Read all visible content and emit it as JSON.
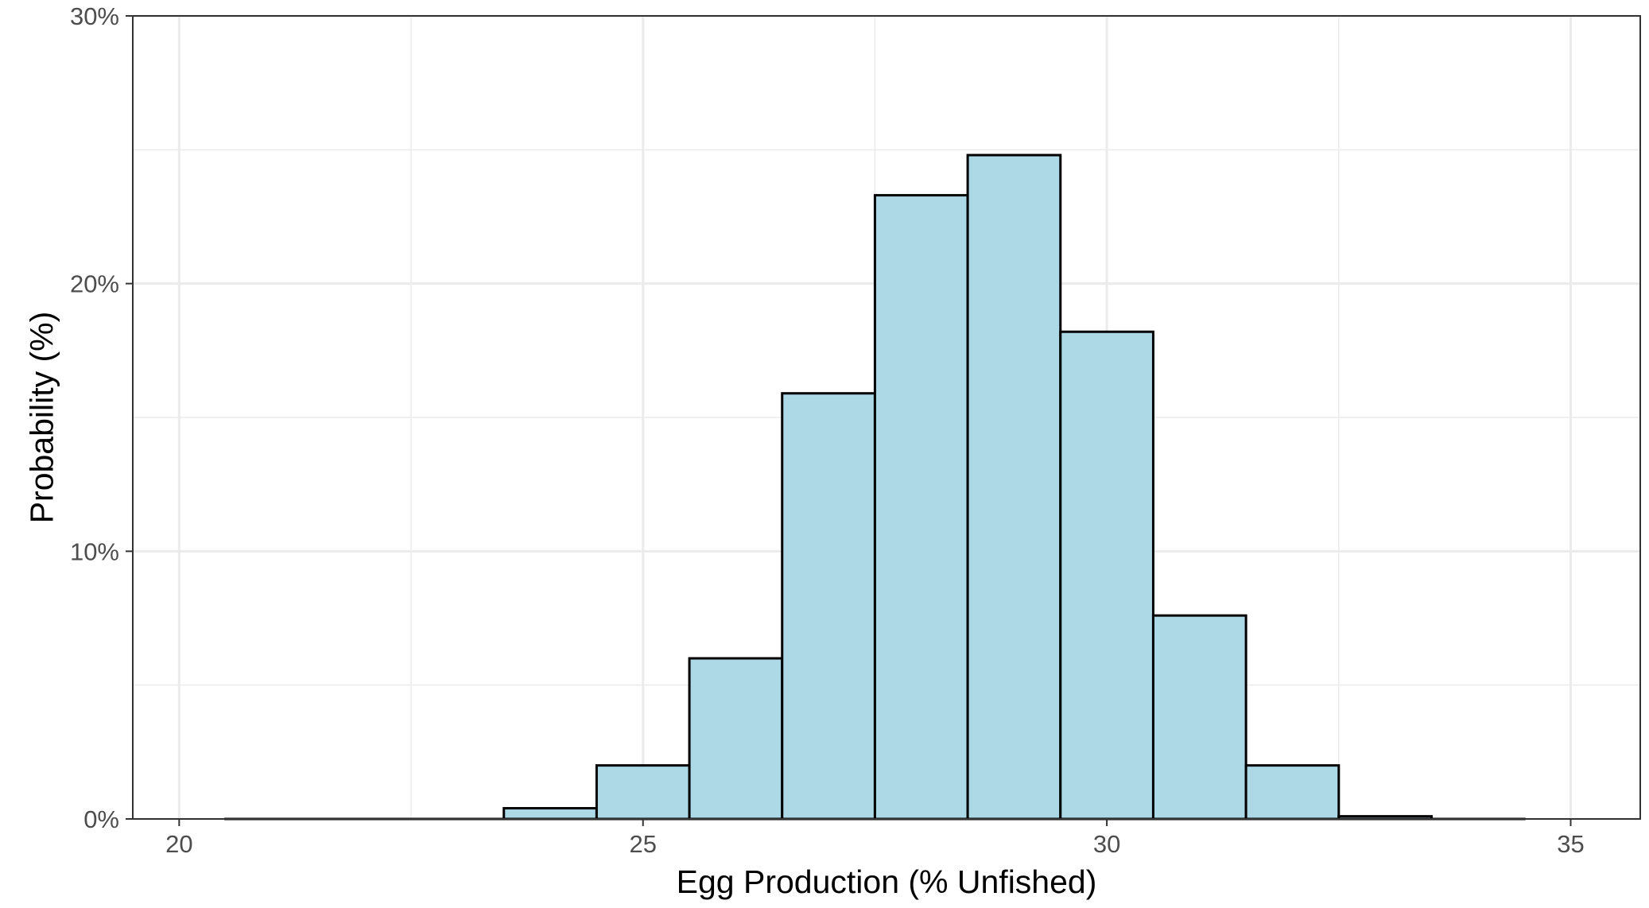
{
  "chart_data": {
    "type": "bar",
    "subtype": "histogram",
    "title": "",
    "xlabel": "Egg Production (% Unfished)",
    "ylabel": "Probability (%)",
    "xlim": [
      19.5,
      35.75
    ],
    "ylim": [
      0,
      30
    ],
    "x_ticks": [
      20,
      25,
      30,
      35
    ],
    "x_tick_labels": [
      "20",
      "25",
      "30",
      "35"
    ],
    "y_ticks": [
      0,
      10,
      20,
      30
    ],
    "y_tick_labels": [
      "0%",
      "10%",
      "20%",
      "30%"
    ],
    "grid": true,
    "bin_width": 1,
    "bins": [
      {
        "x0": 20.5,
        "x1": 21.5,
        "value": 0
      },
      {
        "x0": 21.5,
        "x1": 22.5,
        "value": 0
      },
      {
        "x0": 22.5,
        "x1": 23.5,
        "value": 0
      },
      {
        "x0": 23.5,
        "x1": 24.5,
        "value": 0.4
      },
      {
        "x0": 24.5,
        "x1": 25.5,
        "value": 2.0
      },
      {
        "x0": 25.5,
        "x1": 26.5,
        "value": 6.0
      },
      {
        "x0": 26.5,
        "x1": 27.5,
        "value": 15.9
      },
      {
        "x0": 27.5,
        "x1": 28.5,
        "value": 23.3
      },
      {
        "x0": 28.5,
        "x1": 29.5,
        "value": 24.8
      },
      {
        "x0": 29.5,
        "x1": 30.5,
        "value": 18.2
      },
      {
        "x0": 30.5,
        "x1": 31.5,
        "value": 7.6
      },
      {
        "x0": 31.5,
        "x1": 32.5,
        "value": 2.0
      },
      {
        "x0": 32.5,
        "x1": 33.5,
        "value": 0.1
      },
      {
        "x0": 33.5,
        "x1": 34.5,
        "value": 0
      }
    ],
    "colors": {
      "bar_fill": "#add8e6",
      "bar_stroke": "#000000",
      "grid": "#ebebeb",
      "panel_border": "#333333",
      "tick_text": "#4d4d4d"
    }
  }
}
